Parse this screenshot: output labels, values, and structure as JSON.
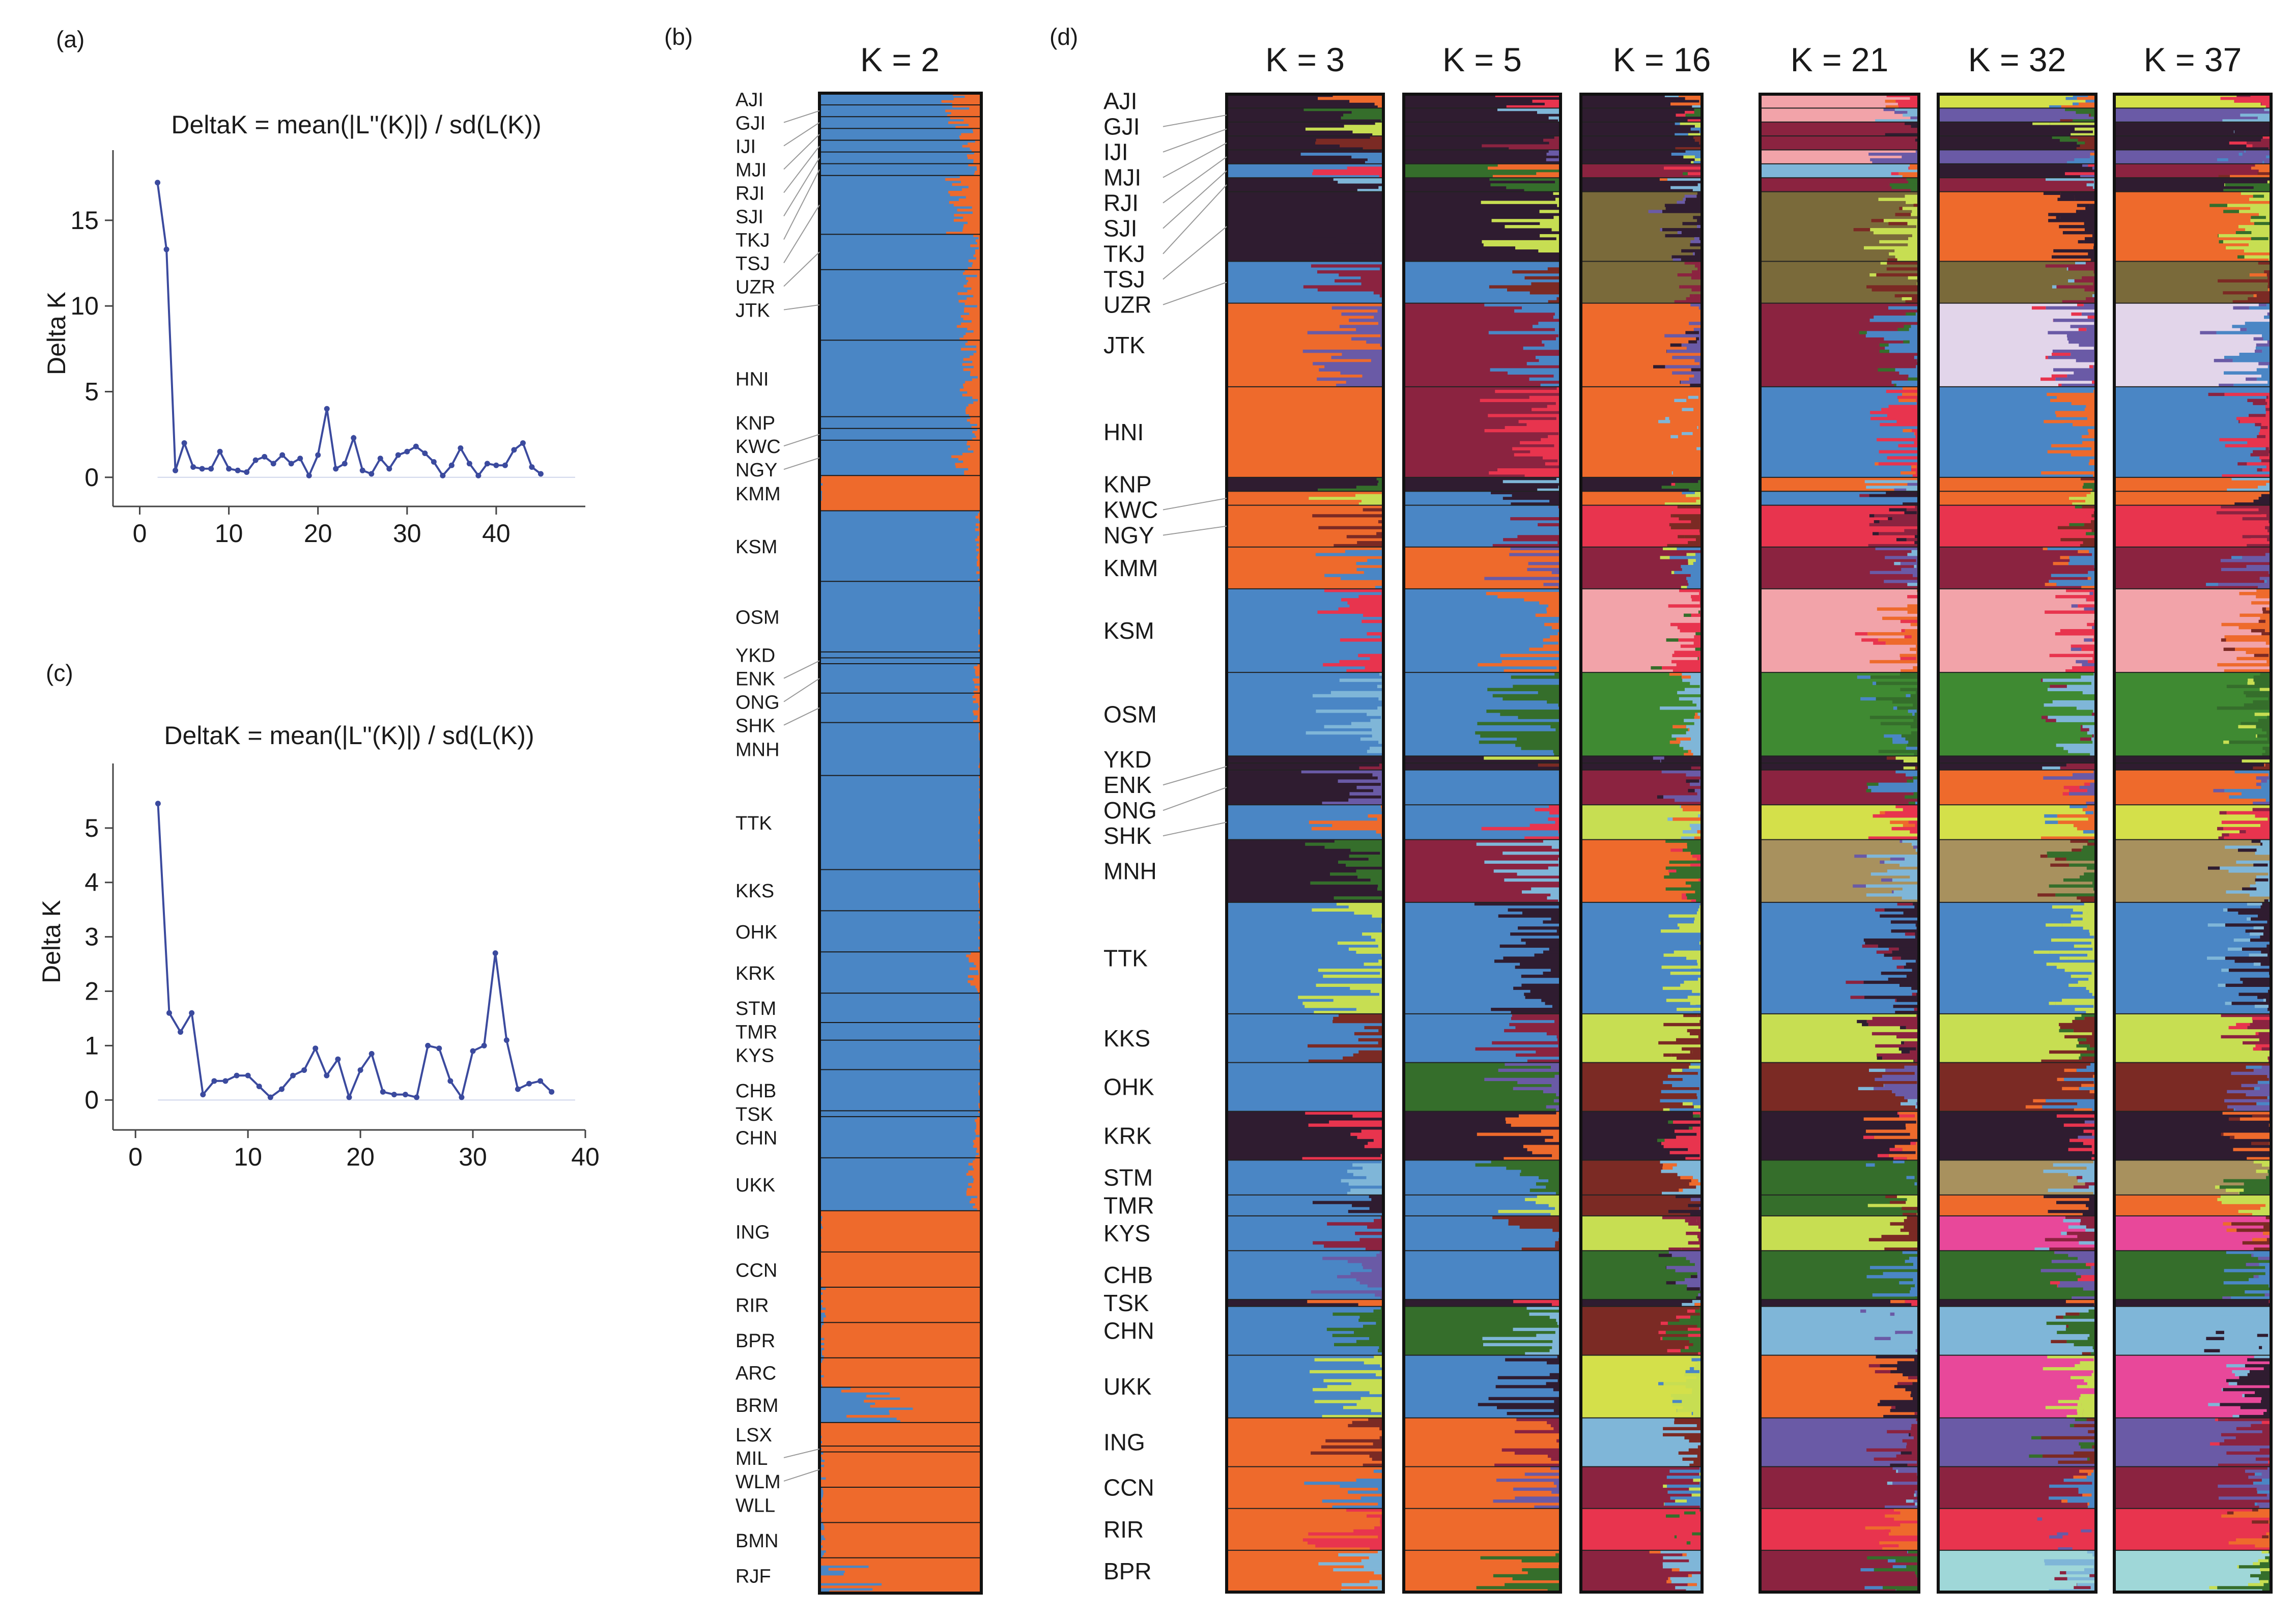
{
  "panels": {
    "a": "(a)",
    "b": "(b)",
    "c": "(c)",
    "d": "(d)"
  },
  "colors": {
    "line": "#3b4a9e",
    "blue": "#4a86c5",
    "orange": "#ee6a2c",
    "navy": "#2f1c30",
    "maroon": "#8b2340",
    "green": "#356e2b",
    "olive": "#7a6a3a",
    "pink": "#f2a3a9",
    "brightgreen": "#3f8a32",
    "lime": "#c7de52",
    "red": "#e8344e",
    "brown": "#7b2a24",
    "purple": "#6a5aa6",
    "lightblue": "#7fb6d8",
    "teal": "#9fd7d8",
    "lavender": "#e2d5ea",
    "magenta": "#e8489a",
    "tan": "#a8915e",
    "yellowgreen": "#d4e04a"
  },
  "chart_data": [
    {
      "type": "line",
      "panel": "a",
      "title": "DeltaK = mean(|L''(K)|) / sd(L(K))",
      "xlabel": "",
      "ylabel": "Delta K",
      "xlim": [
        -3,
        50
      ],
      "ylim": [
        -1.7,
        18.5
      ],
      "xticks": [
        "0",
        "10",
        "20",
        "30",
        "40"
      ],
      "yticks": [
        "0",
        "5",
        "10",
        "15"
      ],
      "x": [
        2,
        3,
        4,
        5,
        6,
        7,
        8,
        9,
        10,
        11,
        12,
        13,
        14,
        15,
        16,
        17,
        18,
        19,
        20,
        21,
        22,
        23,
        24,
        25,
        26,
        27,
        28,
        29,
        30,
        31,
        32,
        33,
        34,
        35,
        36,
        37,
        38,
        39,
        40,
        41,
        42,
        43,
        44,
        45
      ],
      "y": [
        17.2,
        13.3,
        0.4,
        2.0,
        0.6,
        0.5,
        0.5,
        1.5,
        0.5,
        0.4,
        0.3,
        1.0,
        1.2,
        0.8,
        1.3,
        0.8,
        1.1,
        0.1,
        1.3,
        4.0,
        0.5,
        0.8,
        2.3,
        0.4,
        0.2,
        1.1,
        0.5,
        1.3,
        1.5,
        1.8,
        1.4,
        0.9,
        0.1,
        0.7,
        1.7,
        0.8,
        0.1,
        0.8,
        0.7,
        0.7,
        1.6,
        2.0,
        0.6,
        0.2
      ]
    },
    {
      "type": "line",
      "panel": "c",
      "title": "DeltaK = mean(|L''(K)|) / sd(L(K))",
      "xlabel": "",
      "ylabel": "Delta K",
      "xlim": [
        -2,
        40
      ],
      "ylim": [
        -0.55,
        6.0
      ],
      "xticks": [
        "0",
        "10",
        "20",
        "30",
        "40"
      ],
      "yticks": [
        "0",
        "1",
        "2",
        "3",
        "4",
        "5"
      ],
      "x": [
        2,
        3,
        4,
        5,
        6,
        7,
        8,
        9,
        10,
        11,
        12,
        13,
        14,
        15,
        16,
        17,
        18,
        19,
        20,
        21,
        22,
        23,
        24,
        25,
        26,
        27,
        28,
        29,
        30,
        31,
        32,
        33,
        34,
        35,
        36,
        37
      ],
      "y": [
        5.45,
        1.6,
        1.25,
        1.6,
        0.1,
        0.35,
        0.35,
        0.45,
        0.45,
        0.25,
        0.05,
        0.2,
        0.45,
        0.55,
        0.95,
        0.45,
        0.75,
        0.05,
        0.55,
        0.85,
        0.15,
        0.1,
        0.1,
        0.05,
        1.0,
        0.95,
        0.35,
        0.05,
        0.9,
        1.0,
        2.7,
        1.1,
        0.2,
        0.3,
        0.35,
        0.15
      ]
    },
    {
      "type": "bar",
      "panel": "b",
      "subtype": "stacked-admixture",
      "title": "K = 2",
      "populations": [
        "AJI",
        "GJI",
        "IJI",
        "MJI",
        "RJI",
        "SJI",
        "TKJ",
        "TSJ",
        "UZR",
        "JTK",
        "HNI",
        "KNP",
        "KWC",
        "NGY",
        "KMM",
        "KSM",
        "OSM",
        "YKD",
        "ENK",
        "ONG",
        "SHK",
        "MNH",
        "TTK",
        "KKS",
        "OHK",
        "KRK",
        "STM",
        "TMR",
        "KYS",
        "CHB",
        "TSK",
        "CHN",
        "UKK",
        "ING",
        "CCN",
        "RIR",
        "BPR",
        "ARC",
        "BRM",
        "LSX",
        "MIL",
        "WLM",
        "WLL",
        "BMN",
        "RJF"
      ],
      "sizes": [
        2,
        2,
        2,
        2,
        2,
        2,
        2,
        10,
        6,
        12,
        13,
        2,
        2,
        6,
        6,
        12,
        12,
        1,
        1,
        5,
        5,
        9,
        16,
        7,
        7,
        7,
        5,
        3,
        5,
        7,
        1,
        7,
        9,
        7,
        6,
        6,
        6,
        5,
        6,
        4,
        1,
        6,
        6,
        6,
        6
      ],
      "orange_fraction": [
        0.13,
        0.13,
        0.13,
        0.08,
        0.08,
        0.05,
        0.05,
        0.12,
        0.05,
        0.08,
        0.07,
        0.05,
        0.04,
        0.1,
        1.0,
        0.02,
        0.01,
        0.0,
        0.0,
        0.03,
        0.03,
        0.01,
        0.01,
        0.01,
        0.01,
        0.05,
        0.01,
        0.01,
        0.01,
        0.01,
        0.01,
        0.03,
        0.05,
        1.0,
        1.0,
        0.98,
        0.99,
        0.99,
        0.66,
        1.0,
        1.0,
        0.98,
        0.99,
        0.98,
        0.86
      ]
    },
    {
      "type": "bar",
      "panel": "d",
      "subtype": "stacked-admixture",
      "titles": [
        "K = 3",
        "K = 5",
        "K = 16",
        "K = 21",
        "K = 32",
        "K = 37"
      ],
      "populations": [
        "AJI",
        "GJI",
        "IJI",
        "MJI",
        "RJI",
        "SJI",
        "TKJ",
        "TSJ",
        "UZR",
        "JTK",
        "HNI",
        "KNP",
        "KWC",
        "NGY",
        "KMM",
        "KSM",
        "OSM",
        "YKD",
        "ENK",
        "ONG",
        "SHK",
        "MNH",
        "TTK",
        "KKS",
        "OHK",
        "KRK",
        "STM",
        "TMR",
        "KYS",
        "CHB",
        "TSK",
        "CHN",
        "UKK",
        "ING",
        "CCN",
        "RIR",
        "BPR"
      ]
    }
  ]
}
